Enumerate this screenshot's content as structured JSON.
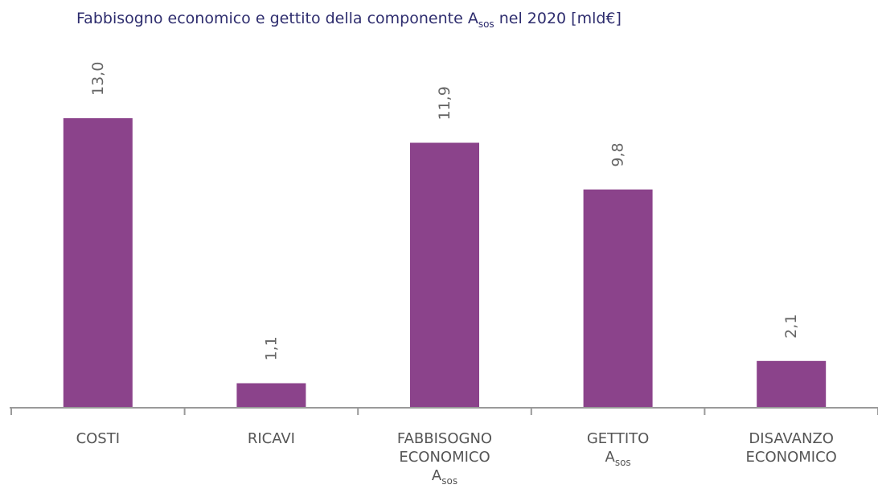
{
  "chart_data": {
    "type": "bar",
    "title": {
      "main": "Fabbisogno economico e gettito della componente A",
      "sub": "sos",
      "tail": " nel 2020 [mld€]"
    },
    "categories": [
      {
        "lines": [
          "COSTI"
        ],
        "sub_line": null
      },
      {
        "lines": [
          "RICAVI"
        ],
        "sub_line": null
      },
      {
        "lines": [
          "FABBISOGNO",
          "ECONOMICO"
        ],
        "sub_line": {
          "main": "A",
          "sub": "sos"
        }
      },
      {
        "lines": [
          "GETTITO"
        ],
        "sub_line": {
          "main": "A",
          "sub": "sos"
        }
      },
      {
        "lines": [
          "DISAVANZO",
          "ECONOMICO"
        ],
        "sub_line": null
      }
    ],
    "values": [
      13.0,
      1.1,
      11.9,
      9.8,
      2.1
    ],
    "value_labels": [
      "13,0",
      "1,1",
      "11,9",
      "9,8",
      "2,1"
    ],
    "ylim": [
      0,
      13.0
    ],
    "bar_color": "#8b438b",
    "axis_color": "#9a9a9a",
    "grid": false
  }
}
